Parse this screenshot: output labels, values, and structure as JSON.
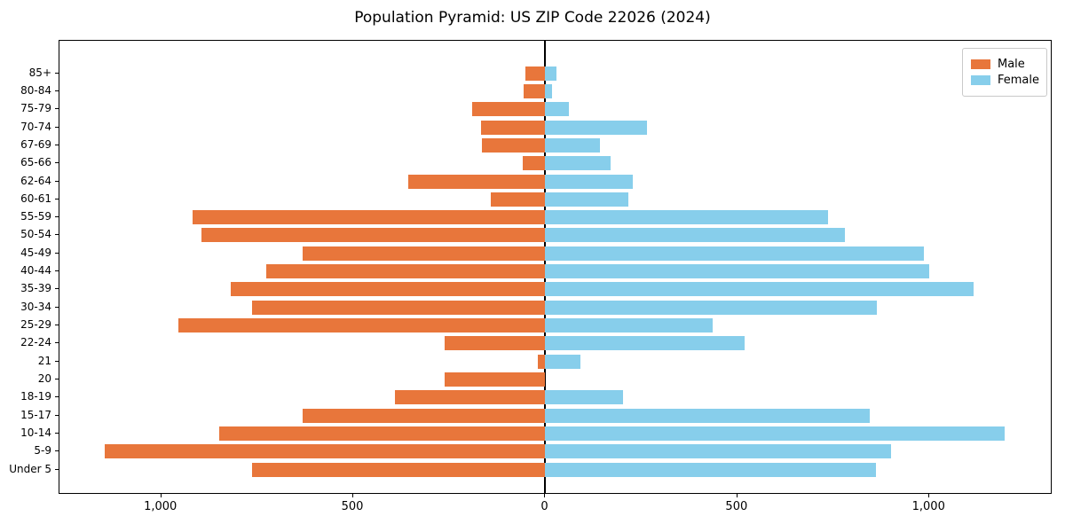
{
  "chart_data": {
    "type": "bar",
    "variant": "population-pyramid-horizontal",
    "title": "Population Pyramid: US ZIP Code 22026 (2024)",
    "categories": [
      "85+",
      "80-84",
      "75-79",
      "70-74",
      "67-69",
      "65-66",
      "62-64",
      "60-61",
      "55-59",
      "50-54",
      "45-49",
      "40-44",
      "35-39",
      "30-34",
      "25-29",
      "22-24",
      "21",
      "20",
      "18-19",
      "15-17",
      "10-14",
      "5-9",
      "Under 5"
    ],
    "series": [
      {
        "name": "Male",
        "side": "left",
        "color": "#E8763B",
        "values": [
          52,
          56,
          190,
          168,
          166,
          58,
          357,
          141,
          919,
          896,
          631,
          726,
          818,
          763,
          956,
          263,
          19,
          263,
          392,
          631,
          850,
          1147,
          763
        ]
      },
      {
        "name": "Female",
        "side": "right",
        "color": "#87CEEB",
        "values": [
          30,
          18,
          62,
          265,
          142,
          171,
          228,
          217,
          737,
          781,
          985,
          1000,
          1116,
          862,
          436,
          518,
          92,
          0,
          203,
          845,
          1197,
          901,
          860
        ]
      }
    ],
    "xlabel": "",
    "ylabel": "",
    "xmin": -1265,
    "xmax": 1316,
    "xtick_values": [
      -1000,
      -500,
      0,
      500,
      1000
    ],
    "xtick_labels": [
      "1,000",
      "500",
      "0",
      "500",
      "1,000"
    ],
    "grid": false,
    "legend_position": "upper right",
    "zero_line_color": "#000000",
    "background_color": "#ffffff"
  }
}
